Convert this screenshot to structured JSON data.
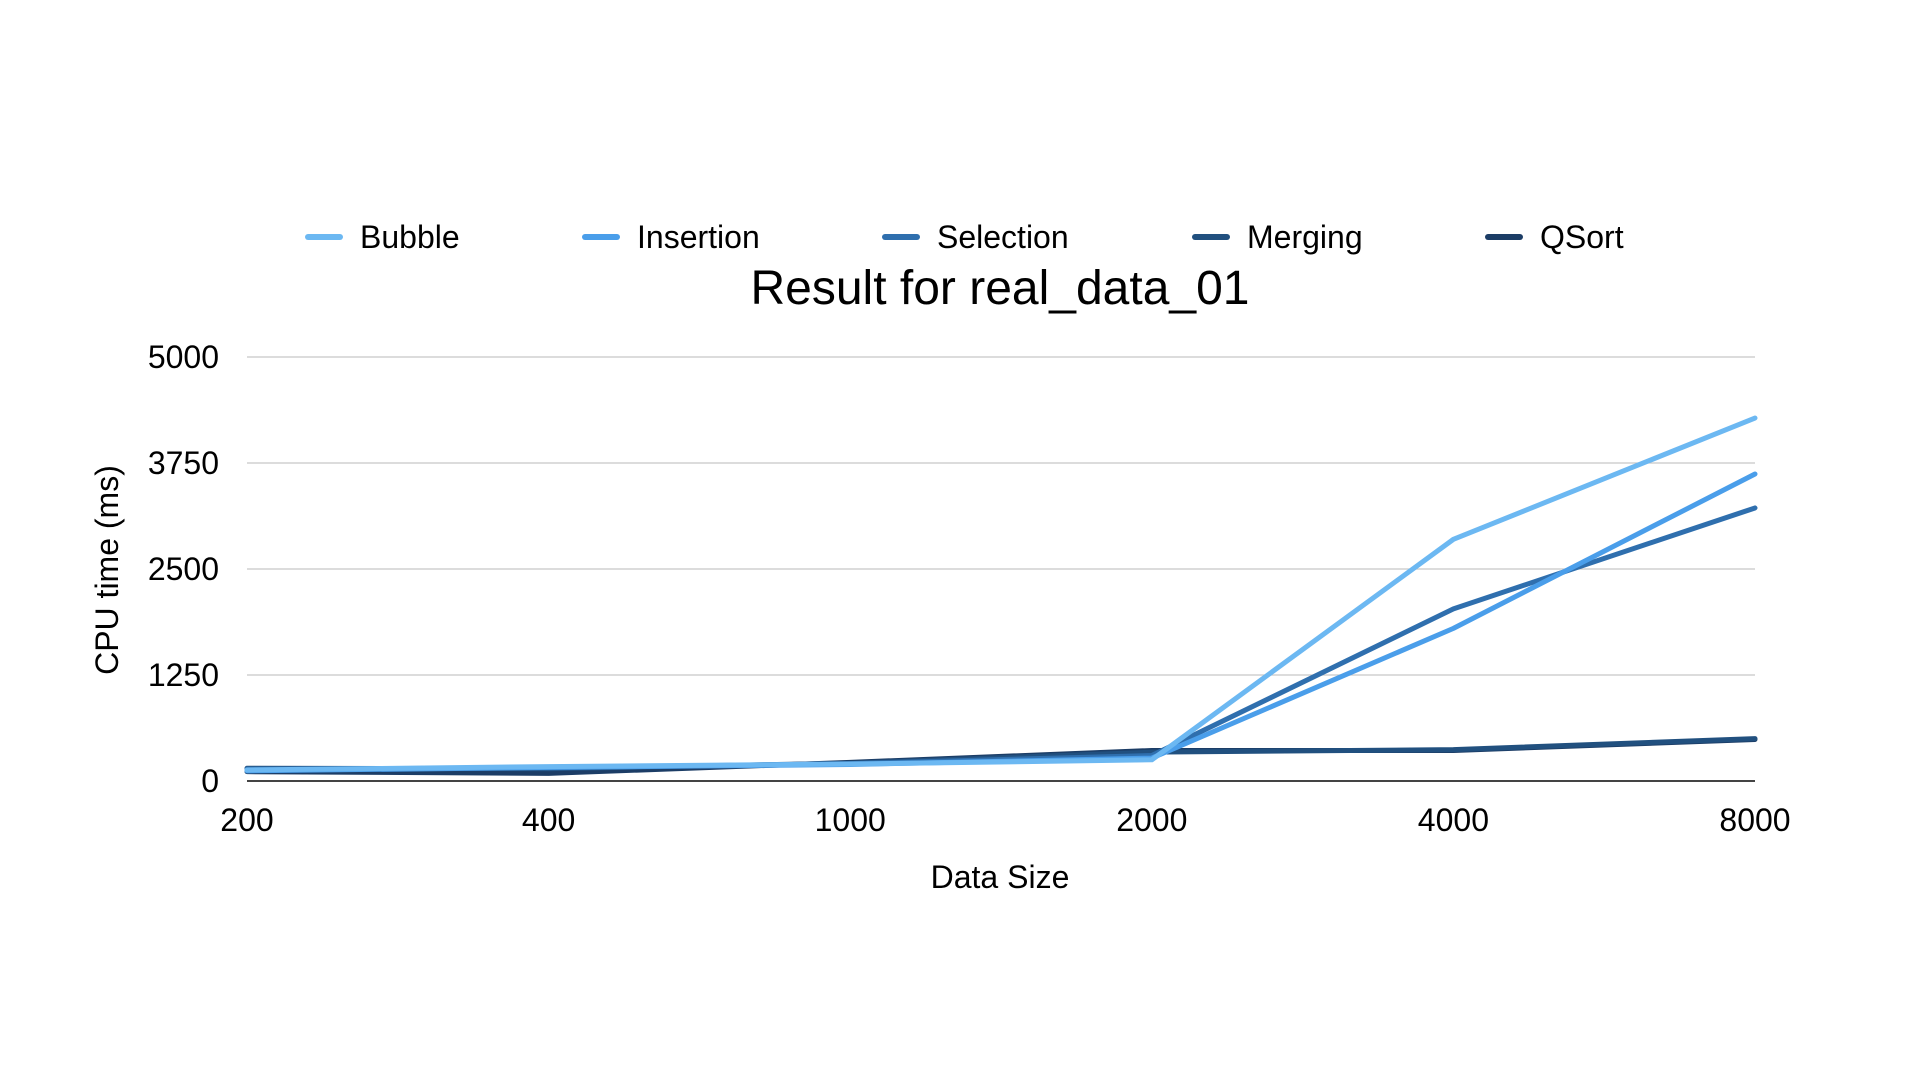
{
  "chart_data": {
    "type": "line",
    "title": "Result for real_data_01",
    "xlabel": "Data Size",
    "ylabel": "CPU time (ms)",
    "categories": [
      "200",
      "400",
      "1000",
      "2000",
      "4000",
      "8000"
    ],
    "yticks": [
      "0",
      "1250",
      "2500",
      "3750",
      "5000"
    ],
    "ylim": [
      0,
      5000
    ],
    "grid": true,
    "legend_position": "top",
    "series": [
      {
        "name": "Bubble",
        "color": "#6cb8f2",
        "values": [
          130,
          170,
          200,
          250,
          2850,
          4280
        ]
      },
      {
        "name": "Insertion",
        "color": "#4a9eea",
        "values": [
          120,
          160,
          195,
          270,
          1800,
          3620
        ]
      },
      {
        "name": "Selection",
        "color": "#2f6fae",
        "values": [
          140,
          155,
          205,
          300,
          2030,
          3220
        ]
      },
      {
        "name": "Merging",
        "color": "#21507f",
        "values": [
          150,
          145,
          210,
          340,
          370,
          500
        ]
      },
      {
        "name": "QSort",
        "color": "#1c3d66",
        "values": [
          110,
          90,
          220,
          360,
          360,
          490
        ]
      }
    ]
  }
}
